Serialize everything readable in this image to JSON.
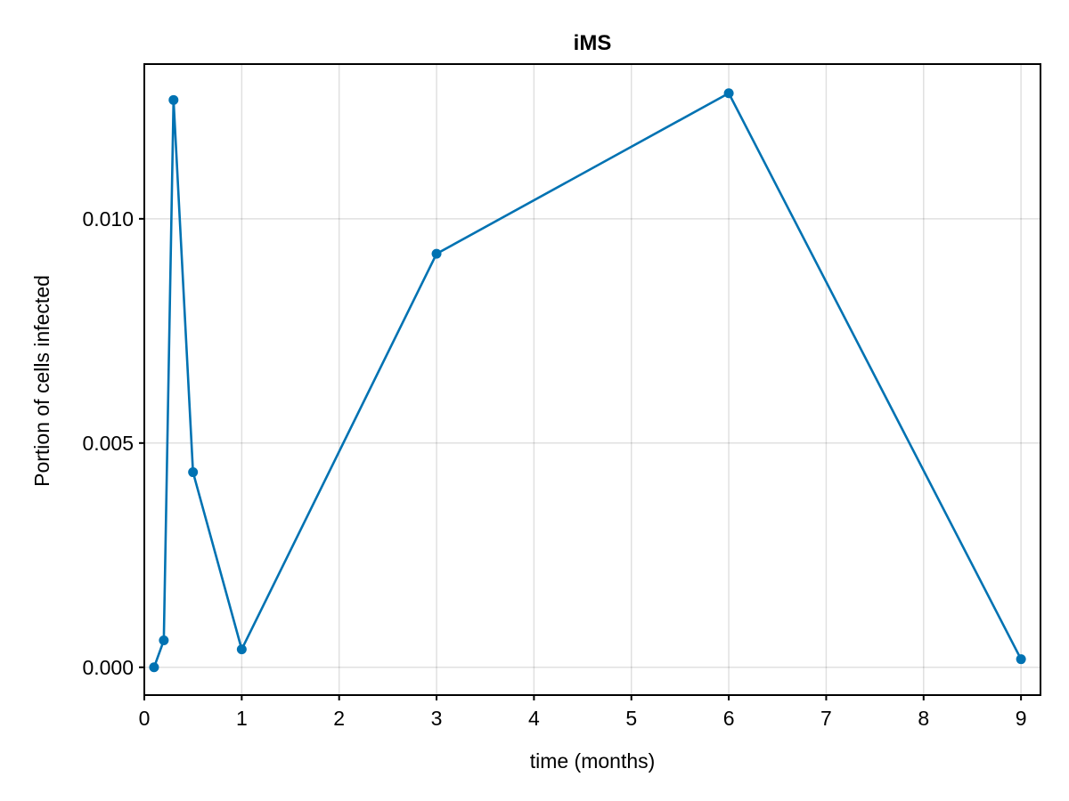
{
  "chart_data": {
    "type": "line",
    "title": "iMS",
    "xlabel": "time (months)",
    "ylabel": "Portion of cells infected",
    "xlim": [
      0,
      9.2
    ],
    "ylim": [
      -0.00062,
      0.01345
    ],
    "xticks": [
      0,
      1,
      2,
      3,
      4,
      5,
      6,
      7,
      8,
      9
    ],
    "xtick_labels": [
      "0",
      "1",
      "2",
      "3",
      "4",
      "5",
      "6",
      "7",
      "8",
      "9"
    ],
    "yticks": [
      0.0,
      0.005,
      0.01
    ],
    "ytick_labels": [
      "0.000",
      "0.005",
      "0.010"
    ],
    "grid": true,
    "legend": "none",
    "series": [
      {
        "color": "#0072B2",
        "markers": true,
        "x": [
          0.1,
          0.2,
          0.3,
          0.5,
          1,
          3,
          6,
          9
        ],
        "y": [
          0.0,
          0.0006,
          0.01265,
          0.00435,
          0.0004,
          0.00922,
          0.0128,
          0.00018
        ]
      }
    ]
  }
}
